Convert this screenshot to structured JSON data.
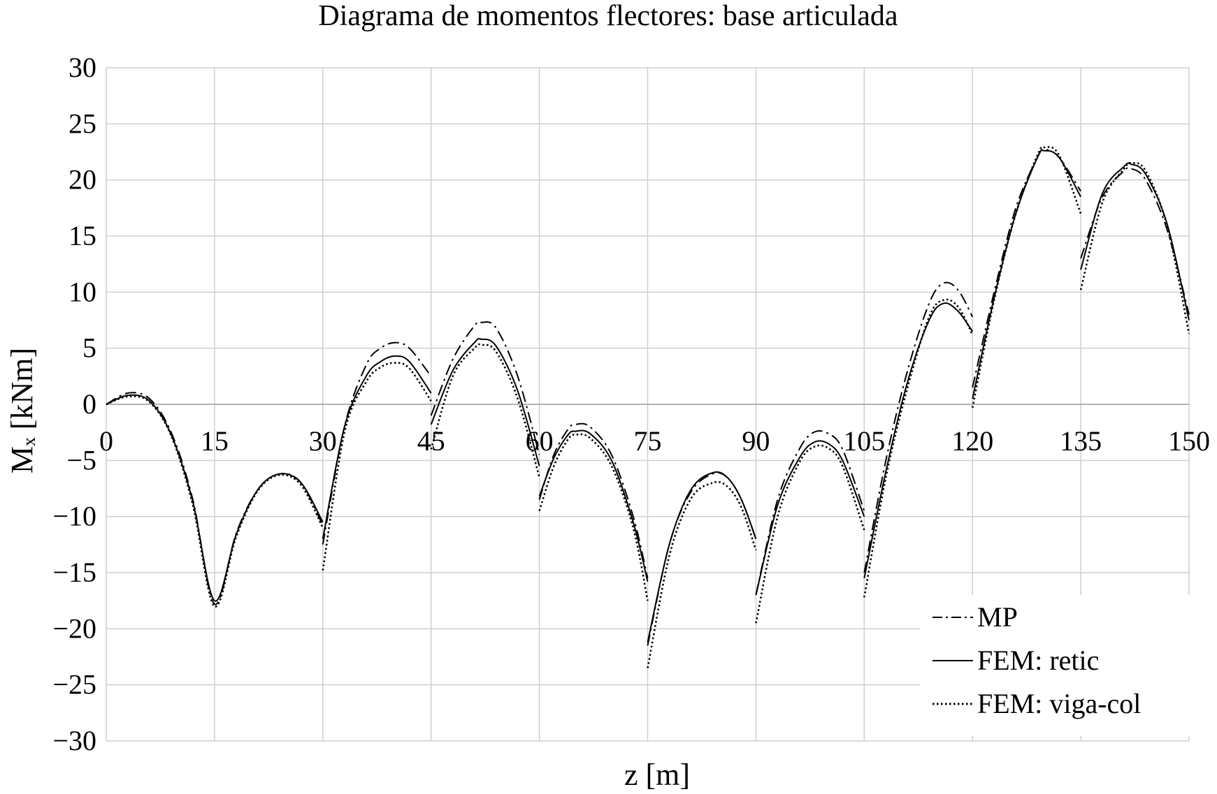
{
  "chart_data": {
    "type": "line",
    "title": "Diagrama de momentos flectores: base articulada",
    "xlabel": "z [m]",
    "ylabel": "Mₓ [kNm]",
    "xlim": [
      0,
      150
    ],
    "ylim": [
      -30,
      30
    ],
    "xticks": [
      0,
      15,
      30,
      45,
      60,
      75,
      90,
      105,
      120,
      135,
      150
    ],
    "yticks": [
      30,
      25,
      20,
      15,
      10,
      5,
      0,
      -5,
      -10,
      -15,
      -20,
      -25,
      -30
    ],
    "xtick_labels": [
      "0",
      "15",
      "30",
      "45",
      "60",
      "75",
      "90",
      "105",
      "120",
      "135",
      "150"
    ],
    "ytick_labels": [
      "30",
      "25",
      "20",
      "15",
      "10",
      "5",
      "0",
      "−5",
      "−10",
      "−15",
      "−20",
      "−25",
      "−30"
    ],
    "grid": true,
    "legend_position": "bottom-right",
    "series": [
      {
        "name": "MP",
        "style": "dash-dot",
        "color": "#000000",
        "points": [
          [
            0,
            0
          ],
          [
            3,
            1.0
          ],
          [
            6,
            0.5
          ],
          [
            9,
            -2.5
          ],
          [
            12,
            -8.5
          ],
          [
            15,
            -17.8
          ],
          [
            18,
            -11.5
          ],
          [
            21,
            -7.6
          ],
          [
            24,
            -6.2
          ],
          [
            27,
            -7.0
          ],
          [
            30,
            -10.8
          ],
          [
            30,
            -12.5
          ],
          [
            33,
            -2.0
          ],
          [
            36,
            3.5
          ],
          [
            38,
            5.0
          ],
          [
            40,
            5.5
          ],
          [
            42,
            5.0
          ],
          [
            45,
            2.5
          ],
          [
            45,
            -1.0
          ],
          [
            48,
            4.0
          ],
          [
            51,
            7.0
          ],
          [
            52,
            7.3
          ],
          [
            54,
            6.8
          ],
          [
            57,
            2.5
          ],
          [
            60,
            -4.5
          ],
          [
            60,
            -8.5
          ],
          [
            62,
            -4.5
          ],
          [
            64,
            -2.2
          ],
          [
            65,
            -1.8
          ],
          [
            67,
            -2.0
          ],
          [
            70,
            -4.5
          ],
          [
            73,
            -10.0
          ],
          [
            75,
            -15.5
          ],
          [
            75,
            -21.5
          ],
          [
            78,
            -12.5
          ],
          [
            81,
            -7.8
          ],
          [
            84,
            -6.2
          ],
          [
            86,
            -6.5
          ],
          [
            88,
            -8.5
          ],
          [
            90,
            -12.0
          ],
          [
            90,
            -17.0
          ],
          [
            93,
            -8.5
          ],
          [
            96,
            -4.0
          ],
          [
            98,
            -2.5
          ],
          [
            100,
            -2.6
          ],
          [
            102,
            -4.0
          ],
          [
            105,
            -9.5
          ],
          [
            105,
            -15.0
          ],
          [
            108,
            -5.0
          ],
          [
            111,
            3.0
          ],
          [
            114,
            9.0
          ],
          [
            116,
            10.8
          ],
          [
            118,
            10.2
          ],
          [
            120,
            7.8
          ],
          [
            120,
            1.5
          ],
          [
            123,
            10.0
          ],
          [
            126,
            17.5
          ],
          [
            129,
            22.0
          ],
          [
            130,
            22.7
          ],
          [
            132,
            22.0
          ],
          [
            135,
            19.0
          ],
          [
            135,
            13.0
          ],
          [
            138,
            18.5
          ],
          [
            141,
            20.8
          ],
          [
            142,
            21.0
          ],
          [
            144,
            20.0
          ],
          [
            147,
            15.5
          ],
          [
            150,
            8.0
          ]
        ]
      },
      {
        "name": "FEM: retic",
        "style": "solid",
        "color": "#000000",
        "points": [
          [
            0,
            0
          ],
          [
            3,
            0.8
          ],
          [
            6,
            0.3
          ],
          [
            9,
            -2.7
          ],
          [
            12,
            -8.7
          ],
          [
            15,
            -17.5
          ],
          [
            18,
            -11.6
          ],
          [
            21,
            -7.6
          ],
          [
            24,
            -6.2
          ],
          [
            27,
            -7.0
          ],
          [
            30,
            -10.5
          ],
          [
            30,
            -12.0
          ],
          [
            33,
            -2.0
          ],
          [
            36,
            2.5
          ],
          [
            38,
            3.8
          ],
          [
            40,
            4.3
          ],
          [
            42,
            3.8
          ],
          [
            45,
            1.0
          ],
          [
            45,
            -1.8
          ],
          [
            48,
            3.0
          ],
          [
            51,
            5.5
          ],
          [
            52,
            5.8
          ],
          [
            54,
            5.2
          ],
          [
            57,
            1.2
          ],
          [
            60,
            -5.5
          ],
          [
            60,
            -8.2
          ],
          [
            62,
            -4.8
          ],
          [
            64,
            -2.7
          ],
          [
            65,
            -2.4
          ],
          [
            67,
            -2.6
          ],
          [
            70,
            -5.0
          ],
          [
            73,
            -10.5
          ],
          [
            75,
            -15.8
          ],
          [
            75,
            -21.2
          ],
          [
            78,
            -12.5
          ],
          [
            81,
            -7.6
          ],
          [
            84,
            -6.1
          ],
          [
            86,
            -6.5
          ],
          [
            88,
            -8.5
          ],
          [
            90,
            -12.0
          ],
          [
            90,
            -17.0
          ],
          [
            93,
            -9.0
          ],
          [
            96,
            -4.8
          ],
          [
            98,
            -3.4
          ],
          [
            100,
            -3.5
          ],
          [
            102,
            -5.0
          ],
          [
            105,
            -10.0
          ],
          [
            105,
            -15.5
          ],
          [
            108,
            -6.0
          ],
          [
            111,
            2.0
          ],
          [
            114,
            7.5
          ],
          [
            116,
            9.0
          ],
          [
            118,
            8.3
          ],
          [
            120,
            6.5
          ],
          [
            120,
            0.5
          ],
          [
            123,
            9.5
          ],
          [
            126,
            17.0
          ],
          [
            129,
            22.0
          ],
          [
            130,
            22.6
          ],
          [
            132,
            22.0
          ],
          [
            135,
            18.5
          ],
          [
            135,
            12.0
          ],
          [
            138,
            18.8
          ],
          [
            141,
            21.2
          ],
          [
            142,
            21.4
          ],
          [
            144,
            20.5
          ],
          [
            147,
            16.0
          ],
          [
            150,
            7.5
          ]
        ]
      },
      {
        "name": "FEM: viga-col",
        "style": "dotted",
        "color": "#000000",
        "points": [
          [
            0,
            0
          ],
          [
            3,
            0.7
          ],
          [
            6,
            0.2
          ],
          [
            9,
            -2.8
          ],
          [
            12,
            -9.0
          ],
          [
            15,
            -18.0
          ],
          [
            18,
            -11.8
          ],
          [
            21,
            -7.7
          ],
          [
            24,
            -6.3
          ],
          [
            27,
            -7.2
          ],
          [
            30,
            -11.0
          ],
          [
            30,
            -14.8
          ],
          [
            33,
            -2.5
          ],
          [
            36,
            2.0
          ],
          [
            38,
            3.3
          ],
          [
            40,
            3.7
          ],
          [
            42,
            3.2
          ],
          [
            45,
            0.3
          ],
          [
            45,
            -4.0
          ],
          [
            48,
            2.5
          ],
          [
            51,
            5.0
          ],
          [
            52,
            5.3
          ],
          [
            54,
            4.7
          ],
          [
            57,
            0.5
          ],
          [
            60,
            -6.5
          ],
          [
            60,
            -9.5
          ],
          [
            62,
            -5.5
          ],
          [
            64,
            -3.1
          ],
          [
            65,
            -2.7
          ],
          [
            67,
            -3.0
          ],
          [
            70,
            -5.5
          ],
          [
            73,
            -11.0
          ],
          [
            75,
            -17.5
          ],
          [
            75,
            -23.5
          ],
          [
            78,
            -13.5
          ],
          [
            81,
            -8.4
          ],
          [
            84,
            -7.0
          ],
          [
            86,
            -7.3
          ],
          [
            88,
            -9.2
          ],
          [
            90,
            -13.0
          ],
          [
            90,
            -19.5
          ],
          [
            93,
            -10.0
          ],
          [
            96,
            -5.2
          ],
          [
            98,
            -3.8
          ],
          [
            100,
            -3.9
          ],
          [
            102,
            -5.5
          ],
          [
            105,
            -11.2
          ],
          [
            105,
            -17.2
          ],
          [
            108,
            -6.5
          ],
          [
            111,
            1.5
          ],
          [
            114,
            7.8
          ],
          [
            116,
            9.3
          ],
          [
            118,
            8.7
          ],
          [
            120,
            6.2
          ],
          [
            120,
            -0.3
          ],
          [
            123,
            9.3
          ],
          [
            126,
            17.0
          ],
          [
            129,
            22.2
          ],
          [
            130,
            22.9
          ],
          [
            132,
            22.2
          ],
          [
            135,
            17.0
          ],
          [
            135,
            10.2
          ],
          [
            138,
            18.0
          ],
          [
            141,
            21.0
          ],
          [
            142,
            21.5
          ],
          [
            144,
            20.8
          ],
          [
            147,
            15.8
          ],
          [
            150,
            6.3
          ]
        ]
      }
    ]
  }
}
